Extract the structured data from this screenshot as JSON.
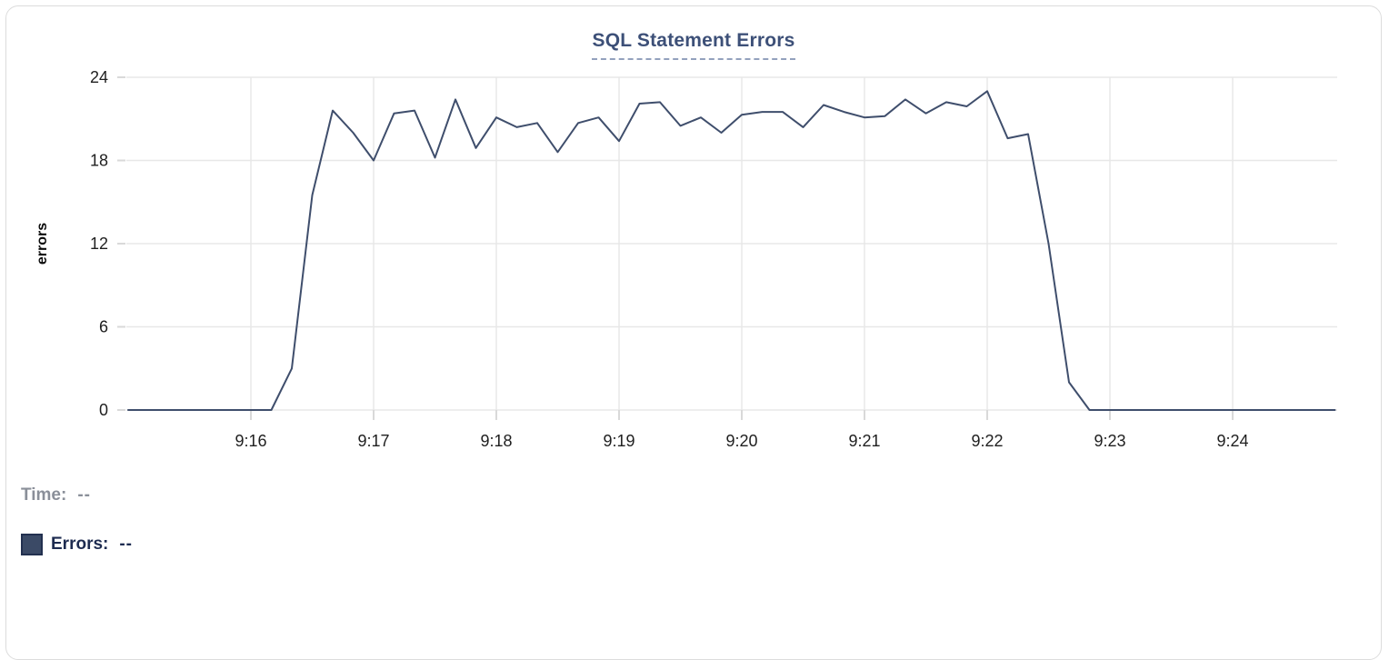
{
  "tooltip": {
    "time_label": "Time:",
    "time_value": "--",
    "errors_label": "Errors:",
    "errors_value": "--"
  },
  "chart_data": {
    "type": "line",
    "title": "SQL Statement Errors",
    "xlabel": "",
    "ylabel": "errors",
    "ylim": [
      0,
      24
    ],
    "y_ticks": [
      0,
      6,
      12,
      18,
      24
    ],
    "x_tick_labels": [
      "9:16",
      "9:17",
      "9:18",
      "9:19",
      "9:20",
      "9:21",
      "9:22",
      "9:23",
      "9:24"
    ],
    "x_range": [
      "9:15:00",
      "9:24:50"
    ],
    "grid": true,
    "legend_position": "bottom-left",
    "colors": {
      "line": "#3f4e6c",
      "gridline": "#e8e8e8",
      "tick_mark": "#d9d9d9",
      "axis_text": "#1f1f1f",
      "title": "#3d5078",
      "swatch": "#3b4a66"
    },
    "series": [
      {
        "name": "Errors",
        "color": "#3f4e6c",
        "points": [
          [
            "9:15:00",
            0
          ],
          [
            "9:15:10",
            0
          ],
          [
            "9:15:20",
            0
          ],
          [
            "9:15:30",
            0
          ],
          [
            "9:15:40",
            0
          ],
          [
            "9:15:50",
            0
          ],
          [
            "9:16:00",
            0
          ],
          [
            "9:16:10",
            0
          ],
          [
            "9:16:20",
            3
          ],
          [
            "9:16:30",
            15.5
          ],
          [
            "9:16:40",
            21.6
          ],
          [
            "9:16:50",
            20
          ],
          [
            "9:17:00",
            18
          ],
          [
            "9:17:10",
            21.4
          ],
          [
            "9:17:20",
            21.6
          ],
          [
            "9:17:30",
            18.2
          ],
          [
            "9:17:40",
            22.4
          ],
          [
            "9:17:50",
            18.9
          ],
          [
            "9:18:00",
            21.1
          ],
          [
            "9:18:10",
            20.4
          ],
          [
            "9:18:20",
            20.7
          ],
          [
            "9:18:30",
            18.6
          ],
          [
            "9:18:40",
            20.7
          ],
          [
            "9:18:50",
            21.1
          ],
          [
            "9:19:00",
            19.4
          ],
          [
            "9:19:10",
            22.1
          ],
          [
            "9:19:20",
            22.2
          ],
          [
            "9:19:30",
            20.5
          ],
          [
            "9:19:40",
            21.1
          ],
          [
            "9:19:50",
            20
          ],
          [
            "9:20:00",
            21.3
          ],
          [
            "9:20:10",
            21.5
          ],
          [
            "9:20:20",
            21.5
          ],
          [
            "9:20:30",
            20.4
          ],
          [
            "9:20:40",
            22
          ],
          [
            "9:20:50",
            21.5
          ],
          [
            "9:21:00",
            21.1
          ],
          [
            "9:21:10",
            21.2
          ],
          [
            "9:21:20",
            22.4
          ],
          [
            "9:21:30",
            21.4
          ],
          [
            "9:21:40",
            22.2
          ],
          [
            "9:21:50",
            21.9
          ],
          [
            "9:22:00",
            23
          ],
          [
            "9:22:10",
            19.6
          ],
          [
            "9:22:20",
            19.9
          ],
          [
            "9:22:30",
            12
          ],
          [
            "9:22:40",
            2
          ],
          [
            "9:22:50",
            0
          ],
          [
            "9:23:00",
            0
          ],
          [
            "9:23:10",
            0
          ],
          [
            "9:23:20",
            0
          ],
          [
            "9:23:30",
            0
          ],
          [
            "9:23:40",
            0
          ],
          [
            "9:23:50",
            0
          ],
          [
            "9:24:00",
            0
          ],
          [
            "9:24:10",
            0
          ],
          [
            "9:24:20",
            0
          ],
          [
            "9:24:30",
            0
          ],
          [
            "9:24:40",
            0
          ],
          [
            "9:24:50",
            0
          ]
        ]
      }
    ]
  }
}
